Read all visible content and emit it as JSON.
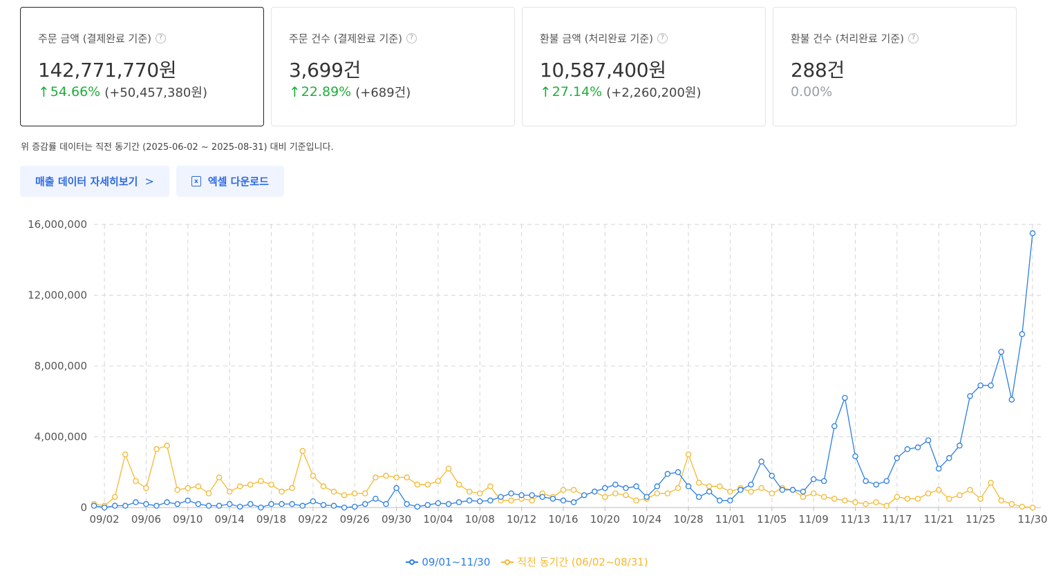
{
  "cards": [
    {
      "label": "주문 금액 (결제완료 기준)",
      "help": "?",
      "value": "142,771,770원",
      "change": "54.66%",
      "diff": "(+50,457,380원)"
    },
    {
      "label": "주문 건수 (결제완료 기준)",
      "help": "?",
      "value": "3,699건",
      "change": "22.89%",
      "diff": "(+689건)"
    },
    {
      "label": "환불 금액 (처리완료 기준)",
      "help": "?",
      "value": "10,587,400원",
      "change": "27.14%",
      "diff": "(+2,260,200원)"
    },
    {
      "label": "환불 건수 (처리완료 기준)",
      "help": "?",
      "value": "288건",
      "change": "0.00%",
      "diff": ""
    }
  ],
  "note": "위 증감률 데이터는 직전 동기간 (2025-06-02 ~ 2025-08-31) 대비 기준입니다.",
  "buttons": {
    "detail_label": "매출 데이터 자세히보기",
    "detail_icon": "chevron-right-icon",
    "excel_label": "엑셀 다운로드",
    "excel_icon": "excel-icon"
  },
  "colors": {
    "up": "#1fae3a",
    "current": "#2a7de1",
    "previous": "#f5b82e",
    "button_text": "#2d6ae0"
  },
  "chart_data": {
    "type": "line",
    "ylim": [
      0,
      16000000
    ],
    "yticks": [
      0,
      4000000,
      8000000,
      12000000,
      16000000
    ],
    "ytick_labels": [
      "0",
      "4,000,000",
      "8,000,000",
      "12,000,000",
      "16,000,000"
    ],
    "x": [
      "09/01",
      "09/02",
      "09/03",
      "09/04",
      "09/05",
      "09/06",
      "09/07",
      "09/08",
      "09/09",
      "09/10",
      "09/11",
      "09/12",
      "09/13",
      "09/14",
      "09/15",
      "09/16",
      "09/17",
      "09/18",
      "09/19",
      "09/20",
      "09/21",
      "09/22",
      "09/23",
      "09/24",
      "09/25",
      "09/26",
      "09/27",
      "09/28",
      "09/29",
      "09/30",
      "10/01",
      "10/02",
      "10/03",
      "10/04",
      "10/05",
      "10/06",
      "10/07",
      "10/08",
      "10/09",
      "10/10",
      "10/11",
      "10/12",
      "10/13",
      "10/14",
      "10/15",
      "10/16",
      "10/17",
      "10/18",
      "10/19",
      "10/20",
      "10/21",
      "10/22",
      "10/23",
      "10/24",
      "10/25",
      "10/26",
      "10/27",
      "10/28",
      "10/29",
      "10/30",
      "10/31",
      "11/01",
      "11/02",
      "11/03",
      "11/04",
      "11/05",
      "11/06",
      "11/07",
      "11/08",
      "11/09",
      "11/10",
      "11/11",
      "11/12",
      "11/13",
      "11/14",
      "11/15",
      "11/16",
      "11/17",
      "11/18",
      "11/19",
      "11/20",
      "11/21",
      "11/22",
      "11/23",
      "11/24",
      "11/25",
      "11/26",
      "11/27",
      "11/28",
      "11/29",
      "11/30"
    ],
    "xtick_labels": [
      "09/02",
      "09/06",
      "09/10",
      "09/14",
      "09/18",
      "09/22",
      "09/26",
      "09/30",
      "10/04",
      "10/08",
      "10/12",
      "10/16",
      "10/20",
      "10/24",
      "10/28",
      "11/01",
      "11/05",
      "11/09",
      "11/13",
      "11/17",
      "11/21",
      "11/25",
      "11/30"
    ],
    "grid": true,
    "legend_position": "bottom",
    "series": [
      {
        "name": "09/01~11/30",
        "values": [
          100000,
          0,
          100000,
          100000,
          300000,
          200000,
          100000,
          300000,
          200000,
          400000,
          200000,
          100000,
          100000,
          200000,
          50000,
          200000,
          0,
          200000,
          200000,
          200000,
          100000,
          350000,
          150000,
          100000,
          0,
          50000,
          200000,
          500000,
          200000,
          1100000,
          200000,
          50000,
          150000,
          250000,
          200000,
          300000,
          400000,
          350000,
          400000,
          600000,
          800000,
          700000,
          700000,
          600000,
          500000,
          400000,
          300000,
          700000,
          900000,
          1100000,
          1300000,
          1100000,
          1200000,
          600000,
          1200000,
          1900000,
          2000000,
          1200000,
          600000,
          900000,
          400000,
          400000,
          1000000,
          1300000,
          2600000,
          1800000,
          1000000,
          1000000,
          900000,
          1600000,
          1500000,
          4600000,
          6200000,
          2900000,
          1500000,
          1300000,
          1500000,
          2800000,
          3300000,
          3400000,
          3800000,
          2200000,
          2800000,
          3500000,
          6300000,
          6900000,
          6900000,
          8800000,
          6100000,
          9800000,
          15500000
        ]
      },
      {
        "name": "직전 동기간 (06/02~08/31)",
        "values": [
          200000,
          100000,
          600000,
          3000000,
          1500000,
          1100000,
          3300000,
          3500000,
          1000000,
          1100000,
          1200000,
          800000,
          1700000,
          900000,
          1200000,
          1300000,
          1500000,
          1300000,
          900000,
          1100000,
          3200000,
          1800000,
          1200000,
          900000,
          700000,
          800000,
          800000,
          1700000,
          1800000,
          1700000,
          1700000,
          1300000,
          1300000,
          1500000,
          2200000,
          1300000,
          900000,
          800000,
          1200000,
          400000,
          400000,
          500000,
          400000,
          800000,
          600000,
          1000000,
          1000000,
          700000,
          900000,
          600000,
          800000,
          700000,
          400000,
          500000,
          800000,
          800000,
          1100000,
          3000000,
          1400000,
          1200000,
          1200000,
          900000,
          1100000,
          900000,
          1100000,
          800000,
          1100000,
          1000000,
          600000,
          800000,
          600000,
          500000,
          400000,
          300000,
          200000,
          300000,
          100000,
          600000,
          500000,
          500000,
          800000,
          1000000,
          500000,
          700000,
          1000000,
          500000,
          1400000,
          400000,
          200000,
          50000,
          0
        ]
      }
    ]
  }
}
